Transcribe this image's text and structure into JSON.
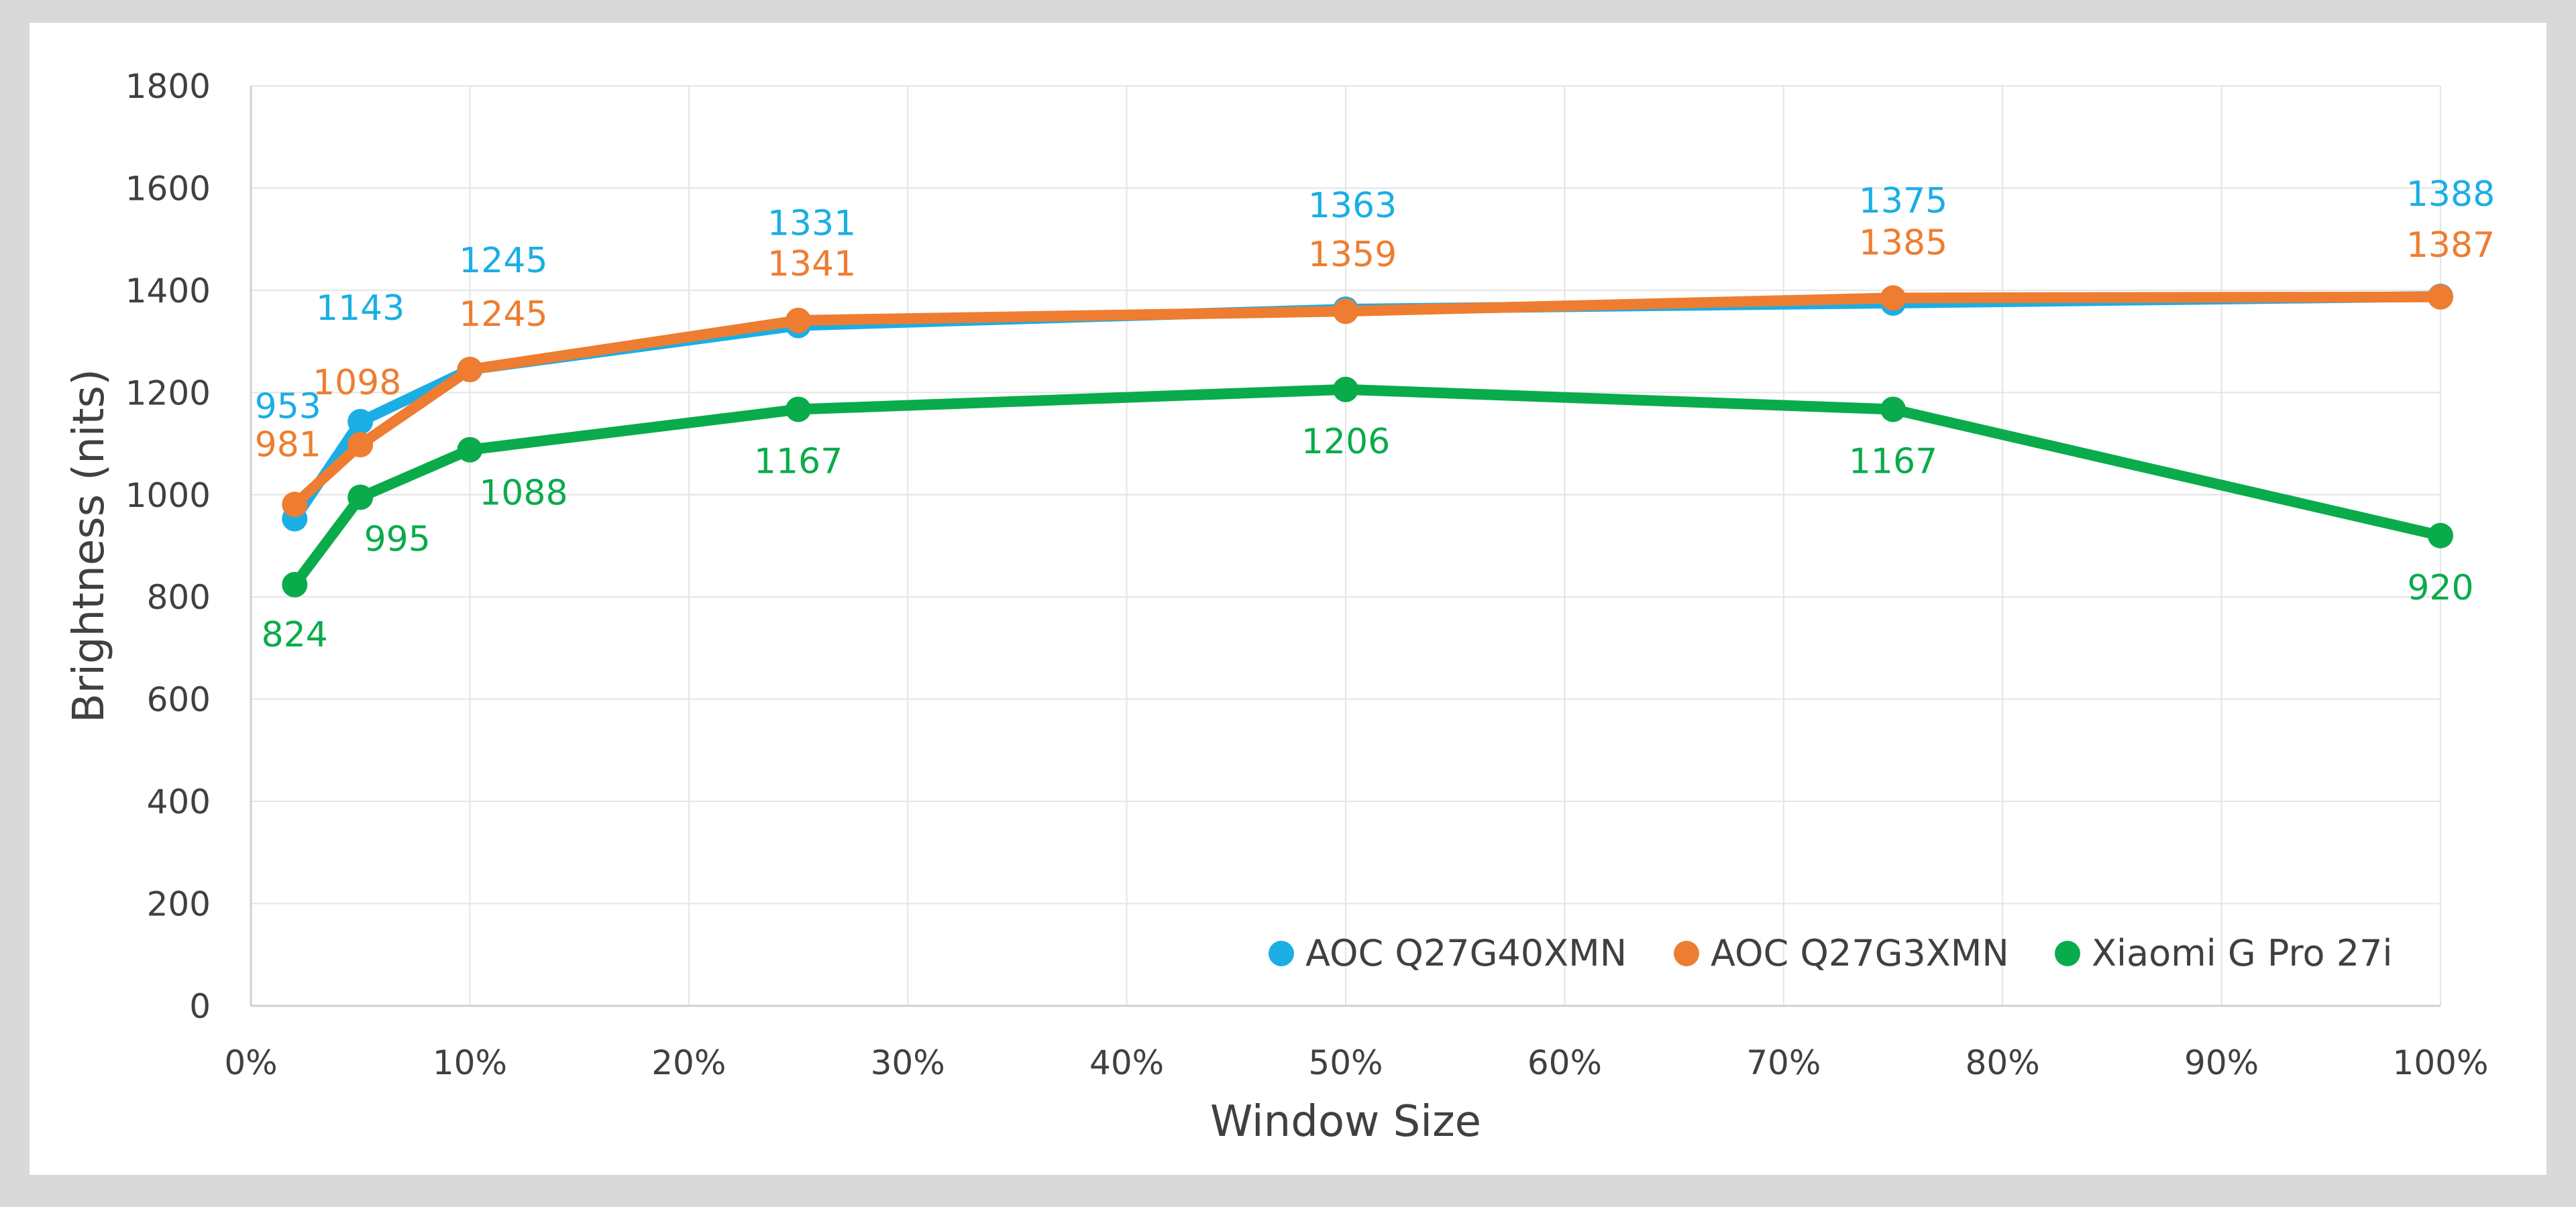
{
  "chart_data": {
    "type": "line",
    "title": "",
    "xlabel": "Window Size",
    "ylabel": "Brightness (nits)",
    "xlim": [
      0,
      100
    ],
    "ylim": [
      0,
      1800
    ],
    "x_ticks": [
      0,
      10,
      20,
      30,
      40,
      50,
      60,
      70,
      80,
      90,
      100
    ],
    "x_tick_labels": [
      "0%",
      "10%",
      "20%",
      "30%",
      "40%",
      "50%",
      "60%",
      "70%",
      "80%",
      "90%",
      "100%"
    ],
    "y_ticks": [
      0,
      200,
      400,
      600,
      800,
      1000,
      1200,
      1400,
      1600,
      1800
    ],
    "y_tick_labels": [
      "0",
      "200",
      "400",
      "600",
      "800",
      "1000",
      "1200",
      "1400",
      "1600",
      "1800"
    ],
    "grid": true,
    "legend_position": "bottom-right",
    "x": [
      2,
      5,
      10,
      25,
      50,
      75,
      100
    ],
    "series": [
      {
        "name": "AOC Q27G40XMN",
        "color": "#1aaee5",
        "values": [
          953,
          1143,
          1245,
          1331,
          1363,
          1375,
          1388
        ]
      },
      {
        "name": "AOC Q27G3XMN",
        "color": "#ee7d31",
        "values": [
          981,
          1098,
          1245,
          1341,
          1359,
          1385,
          1387
        ]
      },
      {
        "name": "Xiaomi G Pro 27i",
        "color": "#0aab4b",
        "values": [
          824,
          995,
          1088,
          1167,
          1206,
          1167,
          920
        ]
      }
    ]
  }
}
